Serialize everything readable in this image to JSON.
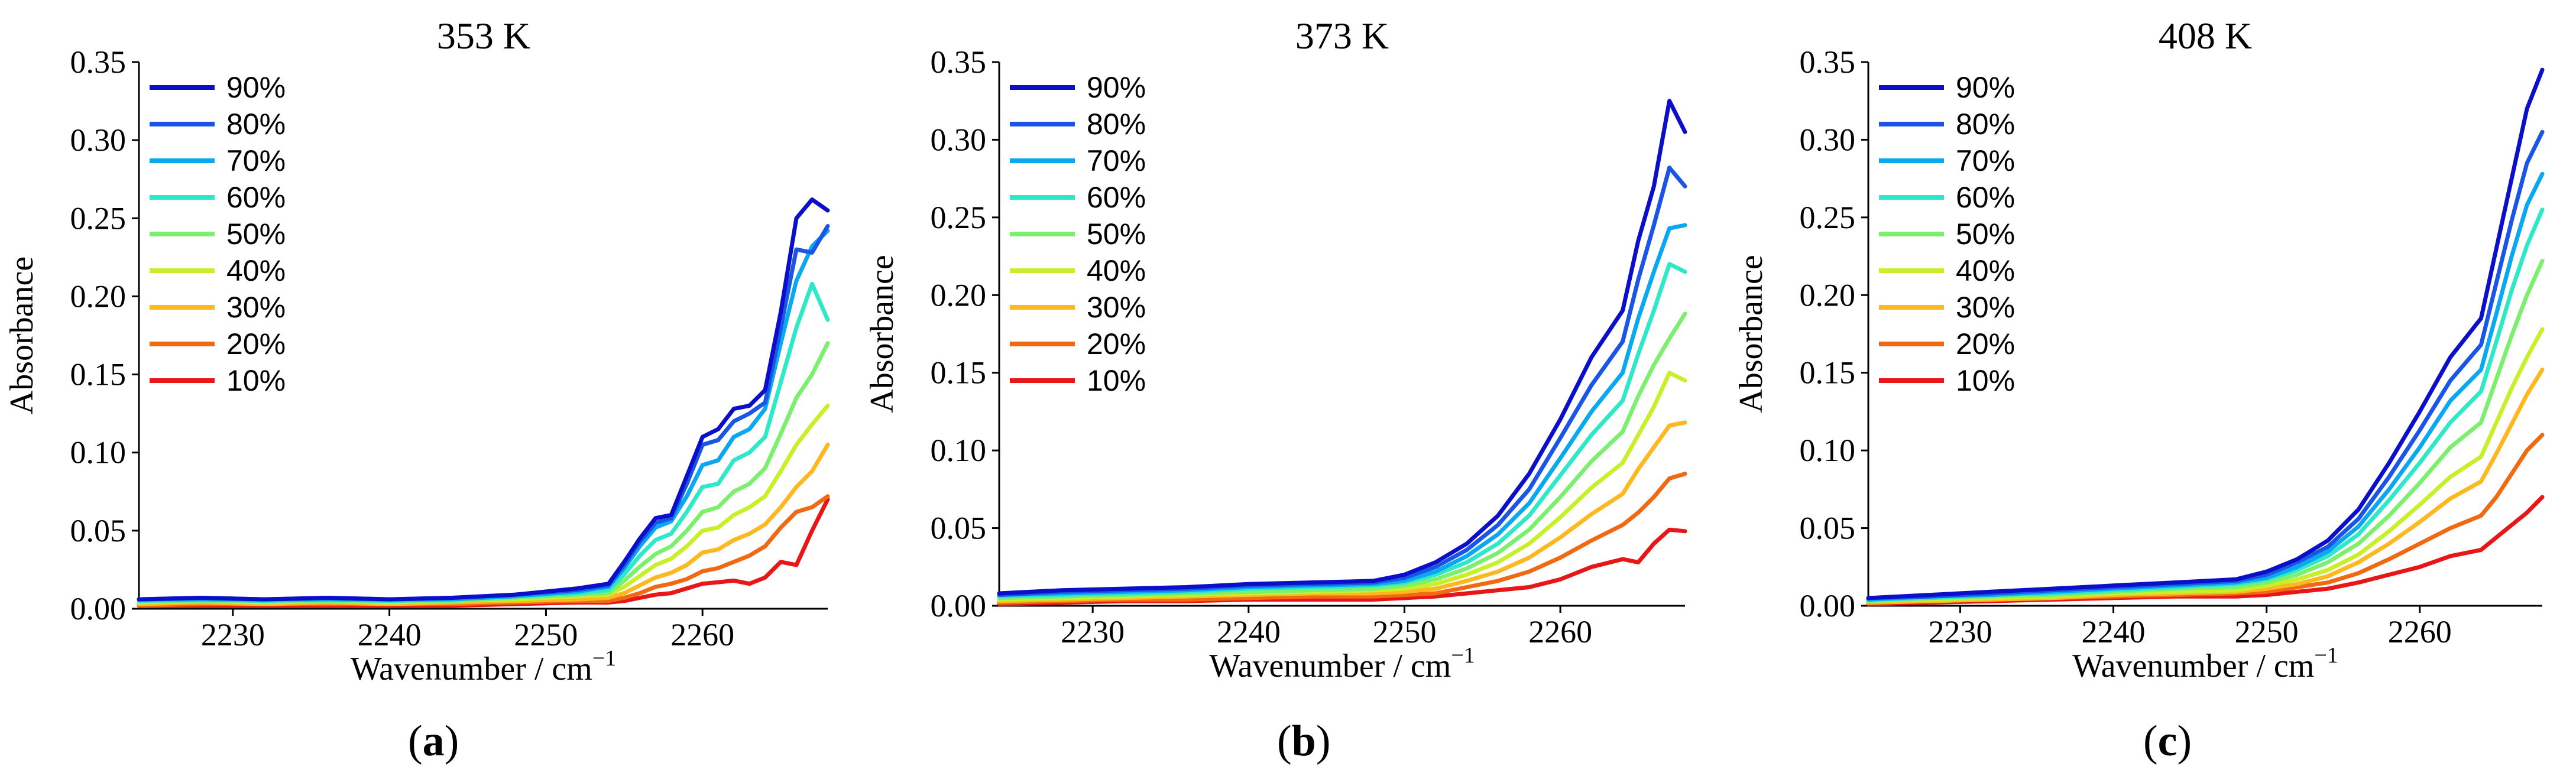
{
  "colors": [
    "#0b10c8",
    "#1a55e6",
    "#0aa8f0",
    "#2ee8c8",
    "#7cf06e",
    "#c8f02a",
    "#ffb820",
    "#f06a14",
    "#e81616"
  ],
  "chart_data": [
    {
      "type": "line",
      "title": "353 K",
      "caption": "a",
      "xlabel": "Wavenumber / cm",
      "xlabel_sup": "−1",
      "ylabel": "Absorbance",
      "xlim": [
        2224,
        2268
      ],
      "ylim": [
        0,
        0.35
      ],
      "xticks": [
        "2230",
        "2240",
        "2250",
        "2260"
      ],
      "yticks": [
        "0.00",
        "0.05",
        "0.10",
        "0.15",
        "0.20",
        "0.25",
        "0.30",
        "0.35"
      ],
      "x": [
        2224,
        2228,
        2232,
        2236,
        2240,
        2244,
        2248,
        2252,
        2254,
        2255,
        2256,
        2257,
        2258,
        2259,
        2260,
        2261,
        2262,
        2263,
        2264,
        2265,
        2266,
        2267,
        2268
      ],
      "series": [
        {
          "name": "90%",
          "values": [
            0.006,
            0.007,
            0.006,
            0.007,
            0.006,
            0.007,
            0.009,
            0.013,
            0.016,
            0.03,
            0.045,
            0.058,
            0.06,
            0.085,
            0.11,
            0.115,
            0.128,
            0.13,
            0.14,
            0.19,
            0.25,
            0.262,
            0.255
          ]
        },
        {
          "name": "80%",
          "values": [
            0.006,
            0.007,
            0.006,
            0.007,
            0.006,
            0.007,
            0.009,
            0.012,
            0.015,
            0.028,
            0.043,
            0.055,
            0.058,
            0.08,
            0.105,
            0.108,
            0.12,
            0.125,
            0.132,
            0.18,
            0.23,
            0.228,
            0.245
          ]
        },
        {
          "name": "70%",
          "values": [
            0.006,
            0.006,
            0.006,
            0.006,
            0.006,
            0.006,
            0.008,
            0.011,
            0.014,
            0.026,
            0.04,
            0.052,
            0.056,
            0.072,
            0.092,
            0.095,
            0.11,
            0.115,
            0.128,
            0.17,
            0.21,
            0.232,
            0.242
          ]
        },
        {
          "name": "60%",
          "values": [
            0.005,
            0.006,
            0.005,
            0.006,
            0.005,
            0.006,
            0.008,
            0.01,
            0.012,
            0.022,
            0.034,
            0.044,
            0.048,
            0.062,
            0.078,
            0.08,
            0.095,
            0.1,
            0.11,
            0.145,
            0.18,
            0.208,
            0.185
          ]
        },
        {
          "name": "50%",
          "values": [
            0.005,
            0.005,
            0.005,
            0.005,
            0.005,
            0.005,
            0.007,
            0.009,
            0.01,
            0.018,
            0.027,
            0.035,
            0.04,
            0.05,
            0.062,
            0.065,
            0.075,
            0.08,
            0.09,
            0.112,
            0.135,
            0.15,
            0.17
          ]
        },
        {
          "name": "40%",
          "values": [
            0.004,
            0.005,
            0.004,
            0.005,
            0.004,
            0.005,
            0.006,
            0.008,
            0.009,
            0.014,
            0.021,
            0.028,
            0.032,
            0.04,
            0.05,
            0.052,
            0.06,
            0.065,
            0.072,
            0.088,
            0.105,
            0.118,
            0.13
          ]
        },
        {
          "name": "30%",
          "values": [
            0.003,
            0.004,
            0.003,
            0.004,
            0.003,
            0.004,
            0.005,
            0.006,
            0.007,
            0.01,
            0.015,
            0.02,
            0.023,
            0.028,
            0.036,
            0.038,
            0.044,
            0.048,
            0.054,
            0.065,
            0.078,
            0.088,
            0.105
          ]
        },
        {
          "name": "20%",
          "values": [
            0.002,
            0.003,
            0.003,
            0.003,
            0.003,
            0.003,
            0.004,
            0.005,
            0.005,
            0.007,
            0.01,
            0.014,
            0.016,
            0.019,
            0.024,
            0.026,
            0.03,
            0.034,
            0.04,
            0.052,
            0.062,
            0.065,
            0.072
          ]
        },
        {
          "name": "10%",
          "values": [
            0.002,
            0.002,
            0.002,
            0.002,
            0.002,
            0.002,
            0.003,
            0.004,
            0.004,
            0.005,
            0.007,
            0.009,
            0.01,
            0.013,
            0.016,
            0.017,
            0.018,
            0.016,
            0.02,
            0.03,
            0.028,
            0.05,
            0.07
          ]
        }
      ]
    },
    {
      "type": "line",
      "title": "373 K",
      "caption": "b",
      "xlabel": "Wavenumber / cm",
      "xlabel_sup": "−1",
      "ylabel": "Absorbance",
      "xlim": [
        2224,
        2268
      ],
      "ylim": [
        0,
        0.35
      ],
      "xticks": [
        "2230",
        "2240",
        "2250",
        "2260"
      ],
      "yticks": [
        "0.00",
        "0.05",
        "0.10",
        "0.15",
        "0.20",
        "0.25",
        "0.30",
        "0.35"
      ],
      "x": [
        2224,
        2228,
        2232,
        2236,
        2240,
        2244,
        2248,
        2250,
        2252,
        2254,
        2256,
        2258,
        2260,
        2262,
        2264,
        2265,
        2266,
        2267,
        2268
      ],
      "series": [
        {
          "name": "90%",
          "values": [
            0.008,
            0.01,
            0.011,
            0.012,
            0.014,
            0.015,
            0.016,
            0.02,
            0.028,
            0.04,
            0.058,
            0.085,
            0.12,
            0.16,
            0.19,
            0.235,
            0.27,
            0.325,
            0.305
          ]
        },
        {
          "name": "80%",
          "values": [
            0.007,
            0.009,
            0.01,
            0.011,
            0.013,
            0.014,
            0.015,
            0.018,
            0.025,
            0.036,
            0.052,
            0.075,
            0.108,
            0.142,
            0.17,
            0.21,
            0.245,
            0.282,
            0.27
          ]
        },
        {
          "name": "70%",
          "values": [
            0.007,
            0.008,
            0.009,
            0.01,
            0.012,
            0.013,
            0.014,
            0.016,
            0.022,
            0.032,
            0.046,
            0.066,
            0.095,
            0.125,
            0.15,
            0.185,
            0.215,
            0.243,
            0.245
          ]
        },
        {
          "name": "60%",
          "values": [
            0.006,
            0.007,
            0.008,
            0.009,
            0.011,
            0.012,
            0.013,
            0.015,
            0.02,
            0.028,
            0.04,
            0.058,
            0.084,
            0.11,
            0.132,
            0.162,
            0.19,
            0.22,
            0.215
          ]
        },
        {
          "name": "50%",
          "values": [
            0.005,
            0.006,
            0.007,
            0.008,
            0.009,
            0.01,
            0.011,
            0.013,
            0.017,
            0.024,
            0.034,
            0.049,
            0.07,
            0.093,
            0.112,
            0.135,
            0.155,
            0.172,
            0.188
          ]
        },
        {
          "name": "40%",
          "values": [
            0.004,
            0.005,
            0.006,
            0.007,
            0.008,
            0.009,
            0.01,
            0.011,
            0.014,
            0.02,
            0.028,
            0.04,
            0.057,
            0.076,
            0.092,
            0.11,
            0.128,
            0.15,
            0.145
          ]
        },
        {
          "name": "30%",
          "values": [
            0.003,
            0.004,
            0.005,
            0.006,
            0.007,
            0.008,
            0.008,
            0.009,
            0.011,
            0.016,
            0.022,
            0.031,
            0.044,
            0.059,
            0.072,
            0.088,
            0.102,
            0.116,
            0.118
          ]
        },
        {
          "name": "20%",
          "values": [
            0.002,
            0.003,
            0.004,
            0.004,
            0.005,
            0.006,
            0.006,
            0.007,
            0.008,
            0.012,
            0.016,
            0.022,
            0.031,
            0.042,
            0.052,
            0.06,
            0.07,
            0.082,
            0.085
          ]
        },
        {
          "name": "10%",
          "values": [
            0.001,
            0.002,
            0.003,
            0.003,
            0.004,
            0.004,
            0.004,
            0.005,
            0.006,
            0.008,
            0.01,
            0.012,
            0.017,
            0.025,
            0.03,
            0.028,
            0.04,
            0.049,
            0.048
          ]
        }
      ]
    },
    {
      "type": "line",
      "title": "408 K",
      "caption": "c",
      "xlabel": "Wavenumber / cm",
      "xlabel_sup": "−1",
      "ylabel": "Absorbance",
      "xlim": [
        2224,
        2268
      ],
      "ylim": [
        0,
        0.35
      ],
      "xticks": [
        "2230",
        "2240",
        "2250",
        "2260"
      ],
      "yticks": [
        "0.00",
        "0.05",
        "0.10",
        "0.15",
        "0.20",
        "0.25",
        "0.30",
        "0.35"
      ],
      "x": [
        2224,
        2228,
        2232,
        2236,
        2240,
        2244,
        2248,
        2250,
        2252,
        2254,
        2256,
        2258,
        2260,
        2262,
        2264,
        2265,
        2266,
        2267,
        2268
      ],
      "series": [
        {
          "name": "90%",
          "values": [
            0.005,
            0.007,
            0.009,
            0.011,
            0.013,
            0.015,
            0.017,
            0.022,
            0.03,
            0.042,
            0.062,
            0.092,
            0.125,
            0.16,
            0.185,
            0.23,
            0.275,
            0.32,
            0.345
          ]
        },
        {
          "name": "80%",
          "values": [
            0.005,
            0.006,
            0.008,
            0.01,
            0.012,
            0.014,
            0.016,
            0.02,
            0.028,
            0.038,
            0.056,
            0.083,
            0.113,
            0.145,
            0.168,
            0.208,
            0.248,
            0.285,
            0.305
          ]
        },
        {
          "name": "70%",
          "values": [
            0.004,
            0.006,
            0.007,
            0.009,
            0.011,
            0.013,
            0.015,
            0.018,
            0.025,
            0.035,
            0.051,
            0.075,
            0.102,
            0.132,
            0.152,
            0.188,
            0.225,
            0.258,
            0.278
          ]
        },
        {
          "name": "60%",
          "values": [
            0.004,
            0.005,
            0.007,
            0.008,
            0.01,
            0.012,
            0.014,
            0.017,
            0.023,
            0.032,
            0.046,
            0.068,
            0.092,
            0.118,
            0.138,
            0.17,
            0.203,
            0.232,
            0.255
          ]
        },
        {
          "name": "50%",
          "values": [
            0.003,
            0.005,
            0.006,
            0.007,
            0.009,
            0.011,
            0.012,
            0.015,
            0.02,
            0.028,
            0.04,
            0.058,
            0.079,
            0.102,
            0.118,
            0.146,
            0.174,
            0.2,
            0.222
          ]
        },
        {
          "name": "40%",
          "values": [
            0.003,
            0.004,
            0.005,
            0.006,
            0.008,
            0.009,
            0.01,
            0.013,
            0.017,
            0.023,
            0.033,
            0.048,
            0.065,
            0.083,
            0.096,
            0.118,
            0.14,
            0.16,
            0.178
          ]
        },
        {
          "name": "30%",
          "values": [
            0.002,
            0.003,
            0.004,
            0.005,
            0.007,
            0.008,
            0.009,
            0.011,
            0.014,
            0.019,
            0.028,
            0.04,
            0.054,
            0.069,
            0.08,
            0.098,
            0.117,
            0.136,
            0.152
          ]
        },
        {
          "name": "20%",
          "values": [
            0.002,
            0.003,
            0.004,
            0.005,
            0.006,
            0.007,
            0.008,
            0.009,
            0.012,
            0.015,
            0.021,
            0.03,
            0.04,
            0.05,
            0.058,
            0.07,
            0.085,
            0.1,
            0.11
          ]
        },
        {
          "name": "10%",
          "values": [
            0.001,
            0.002,
            0.003,
            0.004,
            0.005,
            0.006,
            0.006,
            0.007,
            0.009,
            0.011,
            0.015,
            0.02,
            0.025,
            0.032,
            0.036,
            0.044,
            0.052,
            0.06,
            0.07
          ]
        }
      ]
    }
  ]
}
